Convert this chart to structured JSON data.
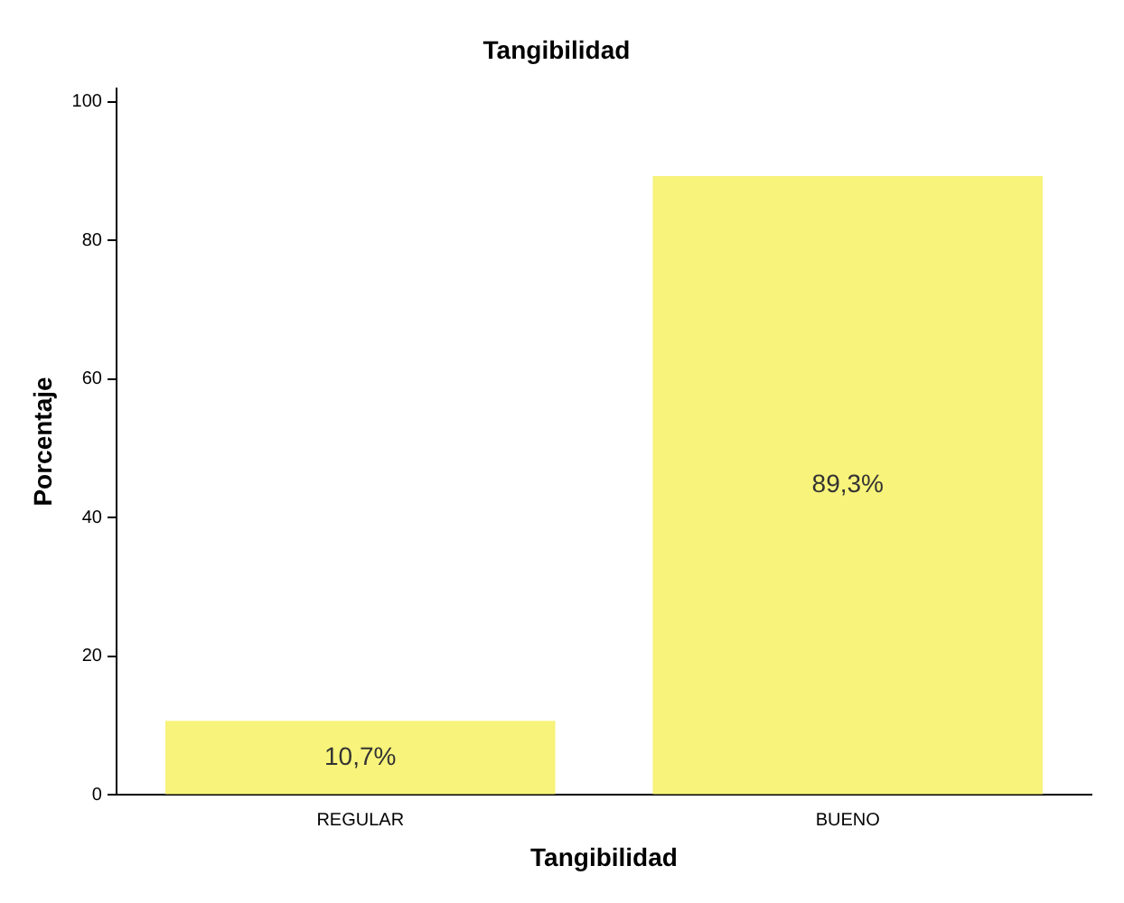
{
  "chart_data": {
    "type": "bar",
    "title": "Tangibilidad",
    "xlabel": "Tangibilidad",
    "ylabel": "Porcentaje",
    "categories": [
      "REGULAR",
      "BUENO"
    ],
    "values": [
      10.7,
      89.3
    ],
    "value_labels": [
      "10,7%",
      "89,3%"
    ],
    "color": "#f7f37b",
    "ylim": [
      0,
      102
    ],
    "yticks": [
      0,
      20,
      40,
      60,
      80,
      100
    ],
    "grid": false,
    "legend": false
  }
}
